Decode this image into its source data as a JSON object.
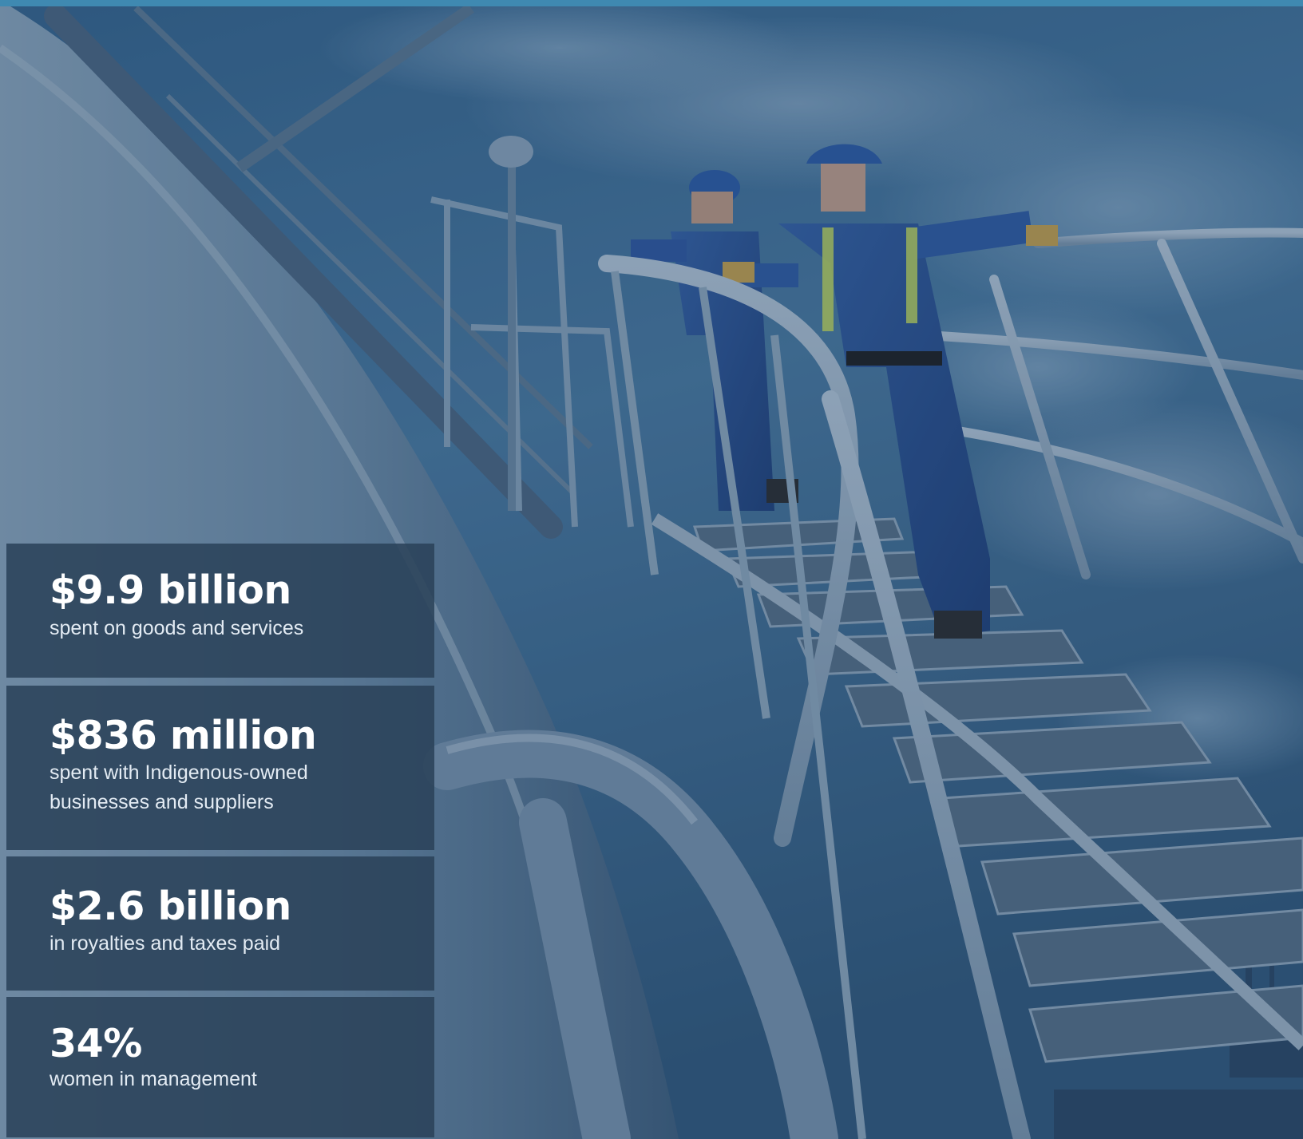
{
  "colors": {
    "accent_bar": "#3f89b1",
    "card_background": "#2a4159",
    "sky": "#3f6f95",
    "steel": "#9fb4c6",
    "coverall_blue": "#2b4f8f",
    "reflective_stripe": "#c9de58"
  },
  "stats": [
    {
      "value": "$9.9 billion",
      "caption": "spent on goods and services"
    },
    {
      "value": "$836 million",
      "caption": "spent with Indigenous-owned businesses and suppliers"
    },
    {
      "value": "$2.6 billion",
      "caption": "in royalties and taxes paid"
    },
    {
      "value": "34%",
      "caption": "women in management"
    }
  ]
}
